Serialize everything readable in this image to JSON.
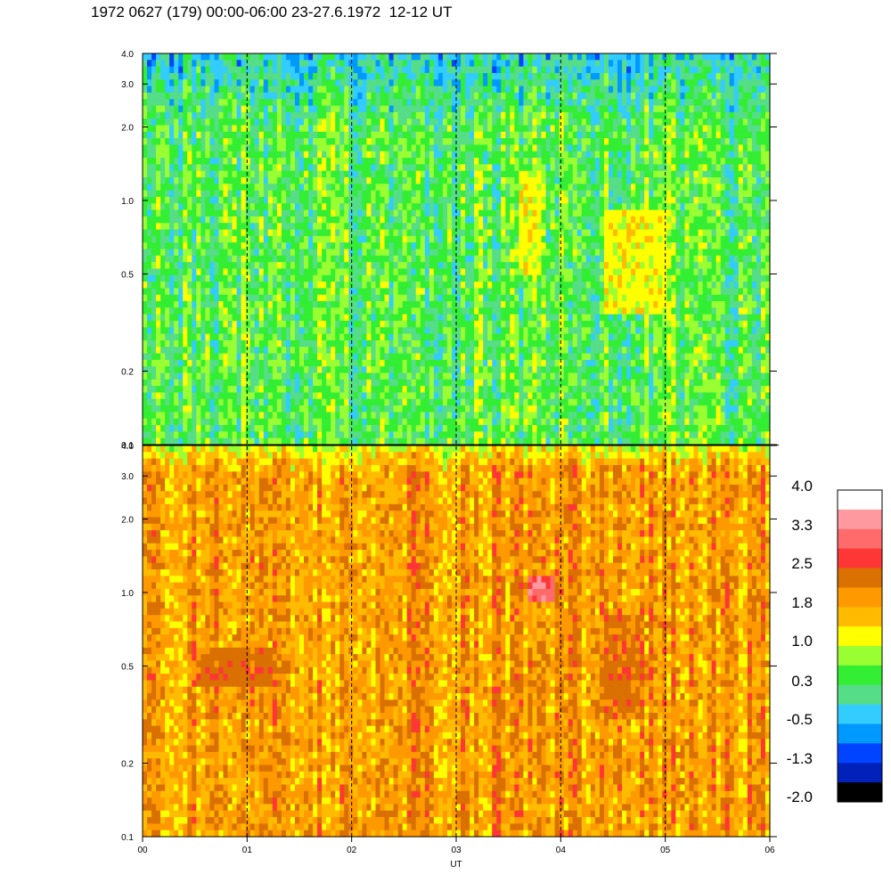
{
  "title": "1972 0627 (179) 00:00-06:00 23-27.6.1972  12-12 UT",
  "chart_data": [
    {
      "type": "heatmap",
      "panel": "upper",
      "x_range": [
        "00",
        "06"
      ],
      "y_scale": "log",
      "y_range": [
        0.1,
        4.0
      ],
      "y_ticks": [
        "0.1",
        "0.2",
        "0.5",
        "1.0",
        "2.0",
        "3.0",
        "4.0"
      ],
      "dominant_level": 0.3,
      "features": [
        {
          "x_start": 3.6,
          "x_end": 3.8,
          "y_low": 0.5,
          "y_high": 1.3,
          "level": 1.0
        },
        {
          "x_start": 4.4,
          "x_end": 5.0,
          "y_low": 0.35,
          "y_high": 0.9,
          "level": 1.0
        }
      ]
    },
    {
      "type": "heatmap",
      "panel": "lower",
      "x_range": [
        "00",
        "06"
      ],
      "y_scale": "log",
      "y_range": [
        0.1,
        4.0
      ],
      "y_ticks": [
        "0.1",
        "0.2",
        "0.5",
        "1.0",
        "2.0",
        "3.0",
        "4.0"
      ],
      "dominant_level": 1.8,
      "features": [
        {
          "x_start": 0.5,
          "x_end": 1.3,
          "y_low": 0.4,
          "y_high": 0.6,
          "level": 2.5
        },
        {
          "x_start": 3.7,
          "x_end": 3.95,
          "y_low": 0.9,
          "y_high": 1.2,
          "level": 3.0
        },
        {
          "x_start": 4.4,
          "x_end": 4.8,
          "y_low": 0.3,
          "y_high": 0.8,
          "level": 2.5
        }
      ]
    }
  ],
  "x_axis": {
    "label": "UT",
    "ticks": [
      "00",
      "01",
      "02",
      "03",
      "04",
      "05",
      "06"
    ],
    "dashed_lines_at": [
      1,
      2,
      3,
      4,
      5
    ]
  },
  "colorbar": {
    "labels": [
      "4.0",
      "3.3",
      "2.5",
      "1.8",
      "1.0",
      "0.3",
      "-0.5",
      "-1.3",
      "-2.0"
    ],
    "colors": [
      "#ffffff",
      "#ff99a0",
      "#ff6b6b",
      "#ff3636",
      "#d97000",
      "#ff9900",
      "#ffbb00",
      "#ffff00",
      "#99ff33",
      "#33ee33",
      "#55dd88",
      "#33ccff",
      "#0099ff",
      "#0044ff",
      "#0022bb",
      "#000000"
    ]
  }
}
